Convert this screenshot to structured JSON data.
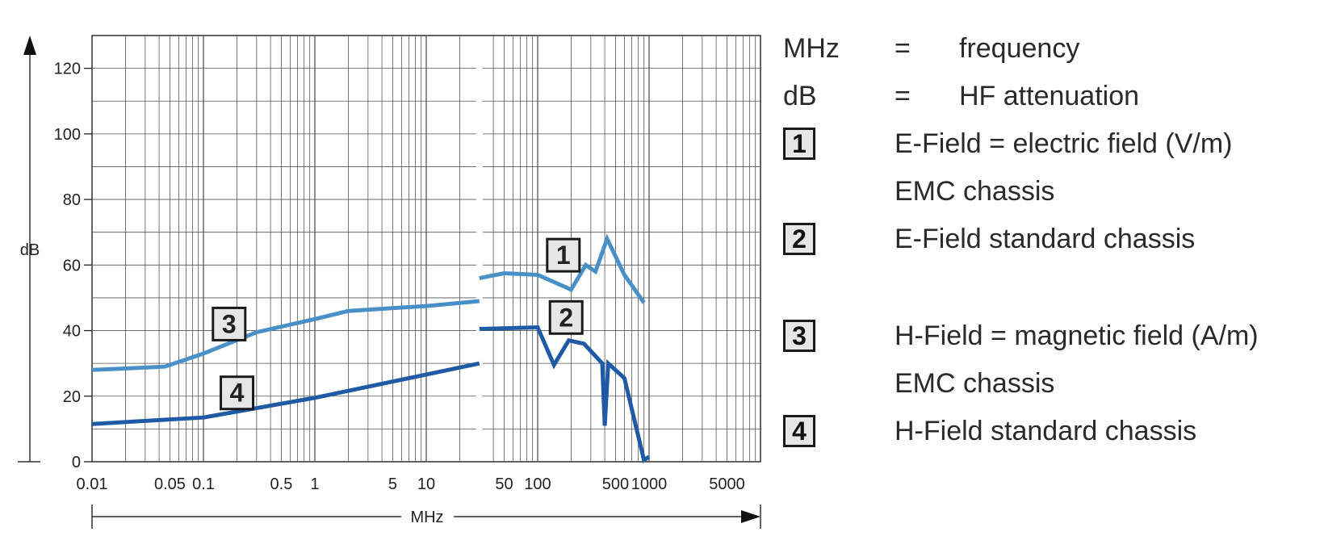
{
  "chart_data": {
    "type": "line",
    "title": "",
    "xlabel": "MHz",
    "ylabel": "dB",
    "x_scale": "log",
    "xlim": [
      0.01,
      10000
    ],
    "ylim": [
      0,
      130
    ],
    "x_ticks": [
      {
        "value": 0.01,
        "label": "0.01"
      },
      {
        "value": 0.05,
        "label": "0.05"
      },
      {
        "value": 0.1,
        "label": "0.1"
      },
      {
        "value": 0.5,
        "label": "0.5"
      },
      {
        "value": 1,
        "label": "1"
      },
      {
        "value": 5,
        "label": "5"
      },
      {
        "value": 10,
        "label": "10"
      },
      {
        "value": 50,
        "label": "50"
      },
      {
        "value": 100,
        "label": "100"
      },
      {
        "value": 500,
        "label": "500"
      },
      {
        "value": 1000,
        "label": "1000"
      },
      {
        "value": 5000,
        "label": "5000"
      }
    ],
    "y_ticks": [
      {
        "value": 0,
        "label": "0"
      },
      {
        "value": 20,
        "label": "20"
      },
      {
        "value": 40,
        "label": "40"
      },
      {
        "value": 60,
        "label": "60"
      },
      {
        "value": 80,
        "label": "80"
      },
      {
        "value": 100,
        "label": "100"
      },
      {
        "value": 120,
        "label": "120"
      }
    ],
    "grid": true,
    "series": [
      {
        "label": "1",
        "color": "#4a90c8",
        "x": [
          30,
          50,
          100,
          200,
          270,
          330,
          420,
          600,
          900
        ],
        "y": [
          56,
          57.5,
          57,
          52.5,
          60,
          58,
          68,
          57,
          48.5
        ]
      },
      {
        "label": "2",
        "color": "#1f5aa6",
        "x": [
          30,
          100,
          140,
          190,
          260,
          380,
          400,
          430,
          600,
          900,
          1000
        ],
        "y": [
          40.5,
          41,
          29.5,
          37,
          36,
          30,
          11,
          30,
          25.5,
          0.5,
          1.5
        ]
      },
      {
        "label": "3",
        "color": "#4a90c8",
        "x": [
          0.01,
          0.045,
          0.1,
          0.3,
          1,
          2,
          10,
          30
        ],
        "y": [
          28,
          29,
          33,
          39.5,
          43.5,
          46,
          47.5,
          49
        ]
      },
      {
        "label": "4",
        "color": "#1f5aa6",
        "x": [
          0.01,
          0.1,
          1,
          30
        ],
        "y": [
          11.5,
          13.5,
          19.5,
          30
        ]
      }
    ]
  },
  "legend": {
    "rows": [
      {
        "sym": "MHz",
        "eq": "=",
        "desc": "frequency"
      },
      {
        "sym": "dB",
        "eq": "=",
        "desc": "HF attenuation"
      }
    ],
    "items": [
      {
        "badge": "1",
        "lines": [
          "E-Field = electric field (V/m)",
          "EMC chassis"
        ]
      },
      {
        "badge": "2",
        "lines": [
          "E-Field standard chassis"
        ]
      },
      {
        "badge": "3",
        "lines": [
          "H-Field = magnetic field (A/m)",
          "EMC chassis"
        ]
      },
      {
        "badge": "4",
        "lines": [
          "H-Field standard chassis"
        ]
      }
    ]
  }
}
